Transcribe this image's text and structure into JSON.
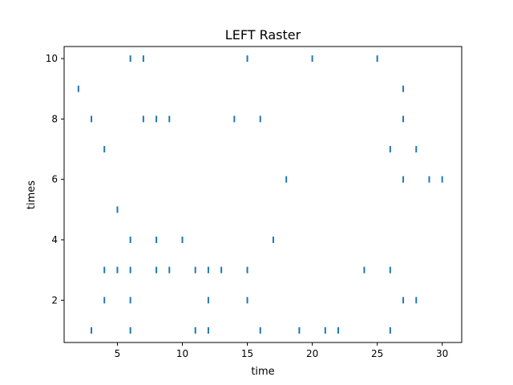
{
  "chart_data": {
    "type": "scatter",
    "title": "LEFT Raster",
    "xlabel": "time",
    "ylabel": "times",
    "xlim": [
      0.9,
      31.5
    ],
    "ylim": [
      0.6,
      10.4
    ],
    "xticks": [
      5,
      10,
      15,
      20,
      25,
      30
    ],
    "yticks": [
      2,
      4,
      6,
      8,
      10
    ],
    "grid": false,
    "marker": "vertical-line",
    "color": "#1f77b4",
    "rows": [
      {
        "y": 1,
        "x": [
          3,
          6,
          11,
          12,
          16,
          19,
          21,
          22,
          26
        ]
      },
      {
        "y": 2,
        "x": [
          4,
          6,
          12,
          15,
          27,
          28
        ]
      },
      {
        "y": 3,
        "x": [
          4,
          5,
          6,
          8,
          9,
          11,
          12,
          13,
          15,
          24,
          26
        ]
      },
      {
        "y": 4,
        "x": [
          6,
          8,
          10,
          17
        ]
      },
      {
        "y": 5,
        "x": [
          5
        ]
      },
      {
        "y": 6,
        "x": [
          18,
          27,
          29,
          30
        ]
      },
      {
        "y": 7,
        "x": [
          4,
          26,
          28
        ]
      },
      {
        "y": 8,
        "x": [
          3,
          7,
          8,
          9,
          14,
          16,
          27
        ]
      },
      {
        "y": 9,
        "x": [
          2,
          27
        ]
      },
      {
        "y": 10,
        "x": [
          6,
          7,
          15,
          20,
          25
        ]
      }
    ]
  }
}
